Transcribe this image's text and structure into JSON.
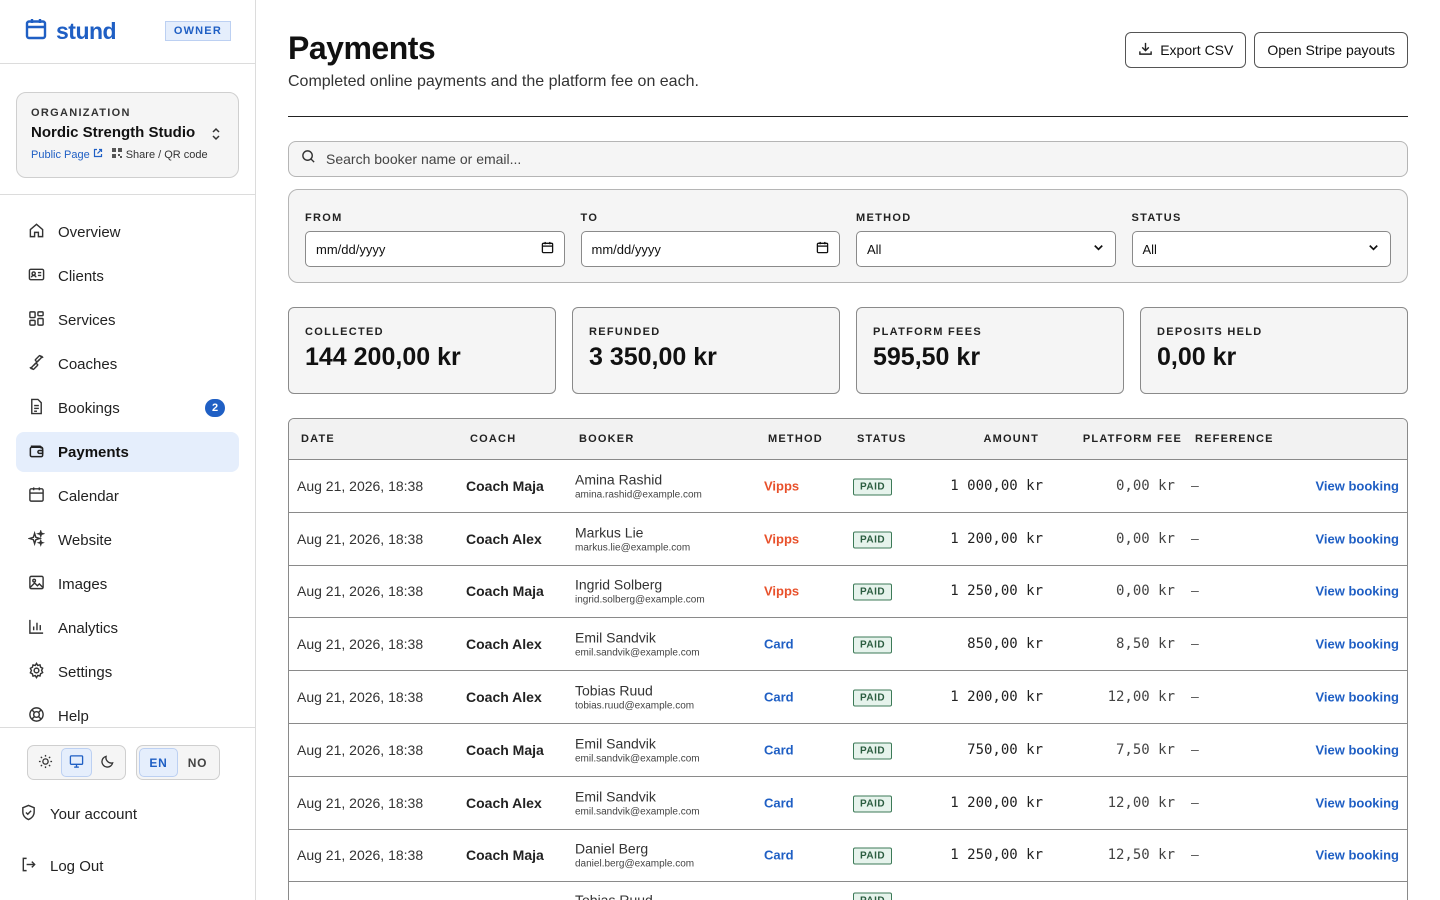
{
  "brand": {
    "name": "stund",
    "role_badge": "OWNER"
  },
  "organization": {
    "caption": "ORGANIZATION",
    "name": "Nordic Strength Studio",
    "public_page": "Public Page",
    "share": "Share / QR code"
  },
  "nav": [
    {
      "label": "Overview",
      "icon": "home-icon"
    },
    {
      "label": "Clients",
      "icon": "id-card-icon"
    },
    {
      "label": "Services",
      "icon": "grid-icon"
    },
    {
      "label": "Coaches",
      "icon": "dumbbell-icon"
    },
    {
      "label": "Bookings",
      "icon": "document-icon",
      "count": "2"
    },
    {
      "label": "Payments",
      "icon": "wallet-icon",
      "active": true
    },
    {
      "label": "Calendar",
      "icon": "calendar-icon"
    },
    {
      "label": "Website",
      "icon": "sparkle-icon"
    },
    {
      "label": "Images",
      "icon": "image-icon"
    },
    {
      "label": "Analytics",
      "icon": "bar-chart-icon"
    },
    {
      "label": "Settings",
      "icon": "gear-icon"
    },
    {
      "label": "Help",
      "icon": "lifebuoy-icon"
    }
  ],
  "lang": {
    "en": "EN",
    "no": "NO",
    "active": "EN"
  },
  "theme": {
    "active": "system"
  },
  "account": {
    "your_account": "Your account",
    "logout": "Log Out"
  },
  "page": {
    "title": "Payments",
    "subtitle": "Completed online payments and the platform fee on each.",
    "export_label": "Export CSV",
    "stripe_label": "Open Stripe payouts"
  },
  "search": {
    "placeholder": "Search booker name or email..."
  },
  "filters": {
    "from_label": "FROM",
    "from_value": "mm/dd/yyyy",
    "to_label": "TO",
    "to_value": "mm/dd/yyyy",
    "method_label": "METHOD",
    "method_value": "All",
    "status_label": "STATUS",
    "status_value": "All"
  },
  "stats": {
    "collected_label": "COLLECTED",
    "collected_value": "144 200,00 kr",
    "refunded_label": "REFUNDED",
    "refunded_value": "3 350,00 kr",
    "fees_label": "PLATFORM FEES",
    "fees_value": "595,50 kr",
    "deposits_label": "DEPOSITS HELD",
    "deposits_value": "0,00 kr"
  },
  "table": {
    "columns": {
      "date": "DATE",
      "coach": "COACH",
      "booker": "BOOKER",
      "method": "METHOD",
      "status": "STATUS",
      "amount": "AMOUNT",
      "fee": "PLATFORM FEE",
      "reference": "REFERENCE"
    },
    "method_colors": {
      "Vipps": "#e8502a",
      "Card": "#1f5fc4"
    },
    "rows": [
      {
        "date": "Aug 21, 2026, 18:38",
        "coach": "Coach Maja",
        "booker_name": "Amina Rashid",
        "booker_email": "amina.rashid@example.com",
        "method": "Vipps",
        "status": "PAID",
        "amount": "1 000,00 kr",
        "fee": "0,00 kr",
        "reference": "–",
        "action": "View booking"
      },
      {
        "date": "Aug 21, 2026, 18:38",
        "coach": "Coach Alex",
        "booker_name": "Markus Lie",
        "booker_email": "markus.lie@example.com",
        "method": "Vipps",
        "status": "PAID",
        "amount": "1 200,00 kr",
        "fee": "0,00 kr",
        "reference": "–",
        "action": "View booking"
      },
      {
        "date": "Aug 21, 2026, 18:38",
        "coach": "Coach Maja",
        "booker_name": "Ingrid Solberg",
        "booker_email": "ingrid.solberg@example.com",
        "method": "Vipps",
        "status": "PAID",
        "amount": "1 250,00 kr",
        "fee": "0,00 kr",
        "reference": "–",
        "action": "View booking"
      },
      {
        "date": "Aug 21, 2026, 18:38",
        "coach": "Coach Alex",
        "booker_name": "Emil Sandvik",
        "booker_email": "emil.sandvik@example.com",
        "method": "Card",
        "status": "PAID",
        "amount": "850,00 kr",
        "fee": "8,50 kr",
        "reference": "–",
        "action": "View booking"
      },
      {
        "date": "Aug 21, 2026, 18:38",
        "coach": "Coach Alex",
        "booker_name": "Tobias Ruud",
        "booker_email": "tobias.ruud@example.com",
        "method": "Card",
        "status": "PAID",
        "amount": "1 200,00 kr",
        "fee": "12,00 kr",
        "reference": "–",
        "action": "View booking"
      },
      {
        "date": "Aug 21, 2026, 18:38",
        "coach": "Coach Maja",
        "booker_name": "Emil Sandvik",
        "booker_email": "emil.sandvik@example.com",
        "method": "Card",
        "status": "PAID",
        "amount": "750,00 kr",
        "fee": "7,50 kr",
        "reference": "–",
        "action": "View booking"
      },
      {
        "date": "Aug 21, 2026, 18:38",
        "coach": "Coach Alex",
        "booker_name": "Emil Sandvik",
        "booker_email": "emil.sandvik@example.com",
        "method": "Card",
        "status": "PAID",
        "amount": "1 200,00 kr",
        "fee": "12,00 kr",
        "reference": "–",
        "action": "View booking"
      },
      {
        "date": "Aug 21, 2026, 18:38",
        "coach": "Coach Maja",
        "booker_name": "Daniel Berg",
        "booker_email": "daniel.berg@example.com",
        "method": "Card",
        "status": "PAID",
        "amount": "1 250,00 kr",
        "fee": "12,50 kr",
        "reference": "–",
        "action": "View booking"
      },
      {
        "date": "",
        "coach": "",
        "booker_name": "Tobias Ruud",
        "booker_email": "",
        "method": "",
        "status": "PAID",
        "amount": "",
        "fee": "",
        "reference": "",
        "action": ""
      }
    ]
  }
}
